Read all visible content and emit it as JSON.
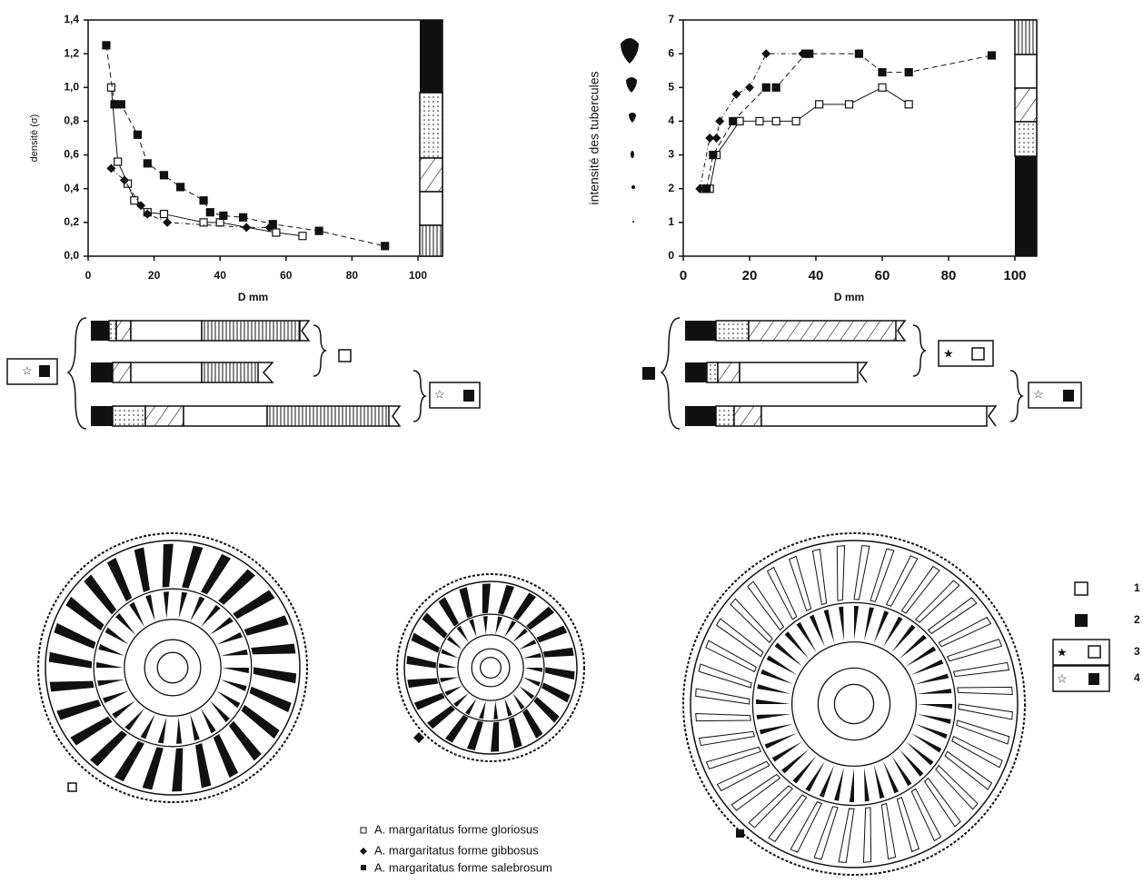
{
  "chart_data": [
    {
      "type": "scatter",
      "ylabel": "densité (σ)",
      "xlabel": "D mm",
      "xlim": [
        0,
        100
      ],
      "xticks": [
        0,
        20,
        40,
        60,
        80,
        100
      ],
      "ylim": [
        0,
        1.4
      ],
      "yticks": [
        {
          "value": 0,
          "label": "0,0"
        },
        {
          "value": 0.2,
          "label": "0,2"
        },
        {
          "value": 0.4,
          "label": "0,4"
        },
        {
          "value": 0.6,
          "label": "0,6"
        },
        {
          "value": 0.8,
          "label": "0,8"
        },
        {
          "value": 1.0,
          "label": "1,0"
        },
        {
          "value": 1.2,
          "label": "1,2"
        },
        {
          "value": 1.4,
          "label": "1,4"
        }
      ],
      "series": [
        {
          "marker": "open-square",
          "color": "#111",
          "x": [
            7,
            9,
            12,
            14,
            18,
            23,
            35,
            40,
            57,
            65
          ],
          "values": [
            1.0,
            0.56,
            0.43,
            0.33,
            0.26,
            0.25,
            0.2,
            0.2,
            0.14,
            0.12
          ]
        },
        {
          "marker": "diamond",
          "color": "#111",
          "x": [
            7,
            11,
            16,
            18,
            24,
            48,
            55
          ],
          "values": [
            0.52,
            0.45,
            0.3,
            0.25,
            0.2,
            0.17,
            0.17
          ]
        },
        {
          "marker": "filled-square",
          "color": "#111",
          "x": [
            5.5,
            8,
            10,
            15,
            18,
            23,
            28,
            35,
            37,
            41,
            47,
            56,
            70,
            90
          ],
          "values": [
            1.25,
            0.9,
            0.9,
            0.72,
            0.55,
            0.48,
            0.41,
            0.33,
            0.26,
            0.24,
            0.23,
            0.19,
            0.15,
            0.06
          ]
        }
      ]
    },
    {
      "type": "scatter",
      "ylabel": "intensité des tubercules",
      "xlabel": "D mm",
      "xlim": [
        0,
        100
      ],
      "xticks": [
        0,
        20,
        40,
        60,
        80,
        100
      ],
      "ylim": [
        0,
        7
      ],
      "yticks": [
        0,
        1,
        2,
        3,
        4,
        5,
        6,
        7
      ],
      "series": [
        {
          "marker": "open-square",
          "color": "#111",
          "x": [
            6,
            8,
            10,
            17,
            23,
            28,
            34,
            41,
            50,
            60,
            68
          ],
          "values": [
            2,
            2,
            3,
            4,
            4,
            4,
            4,
            4.5,
            4.5,
            5,
            4.5
          ]
        },
        {
          "marker": "diamond",
          "color": "#111",
          "x": [
            5,
            8,
            10,
            11,
            16,
            20,
            25,
            36
          ],
          "values": [
            2,
            3.5,
            3.5,
            4,
            4.8,
            5,
            6,
            6
          ]
        },
        {
          "marker": "filled-square",
          "color": "#111",
          "x": [
            7,
            9,
            15,
            25,
            28,
            37,
            38,
            53,
            60,
            68,
            93
          ],
          "values": [
            2,
            3,
            4,
            5,
            5,
            6,
            6,
            6,
            5.45,
            5.45,
            5.95
          ]
        }
      ]
    }
  ],
  "legend": [
    "A. margaritatus forme gloriosus",
    "A. margaritatus forme gibbosus",
    "A. margaritatus forme salebrosum"
  ],
  "key": [
    "1",
    "2",
    "3",
    "4"
  ]
}
